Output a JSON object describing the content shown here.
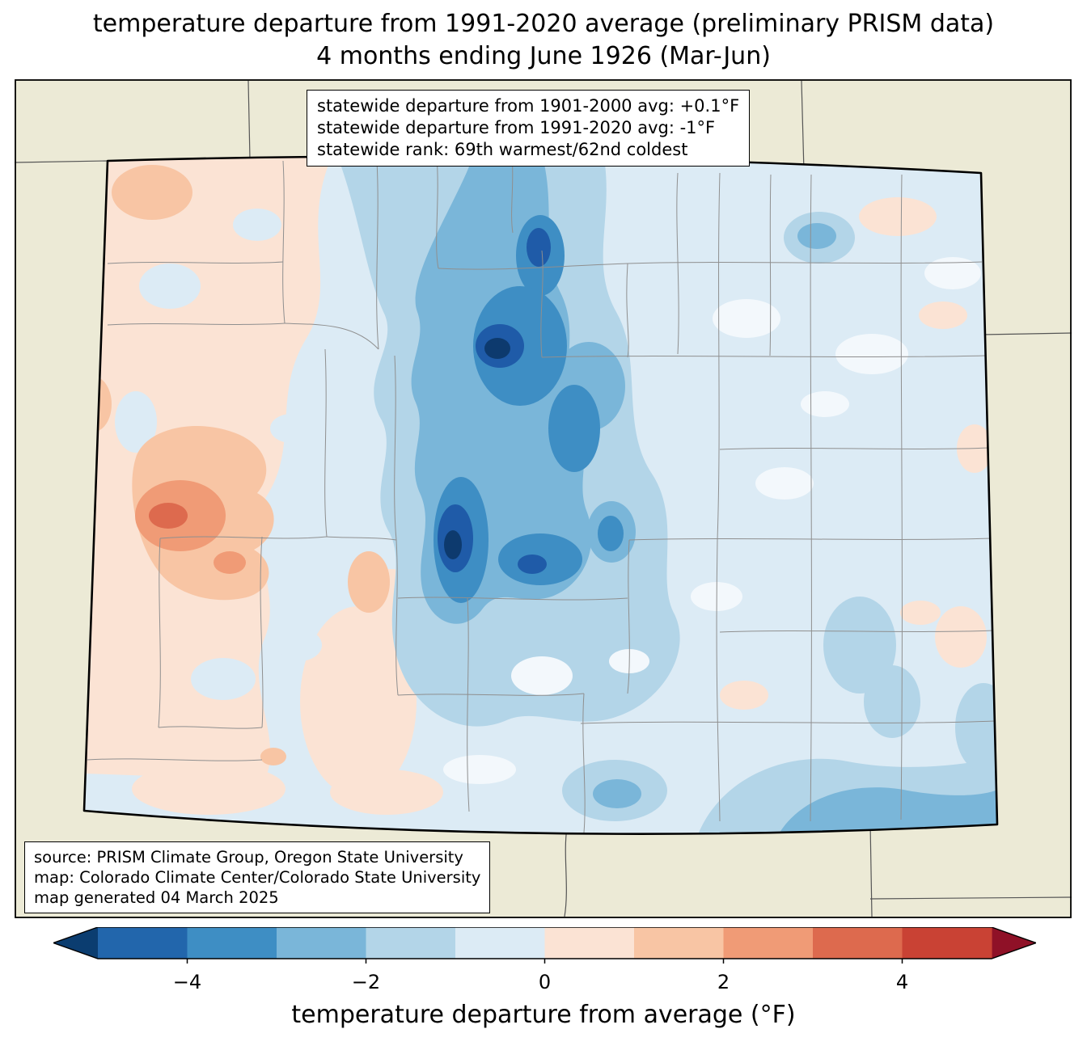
{
  "title": {
    "line1": "temperature departure from 1991-2020 average (preliminary PRISM data)",
    "line2": "4 months ending June 1926 (Mar-Jun)"
  },
  "stats_box": {
    "lines": [
      "statewide departure from 1901-2000 avg: +0.1°F",
      "statewide departure from 1991-2020 avg: -1°F",
      "statewide rank: 69th warmest/62nd coldest"
    ]
  },
  "source_box": {
    "lines": [
      "source: PRISM Climate Group, Oregon State University",
      "map: Colorado Climate Center/Colorado State University",
      "map generated 04 March 2025"
    ]
  },
  "colorbar": {
    "label": "temperature departure from average (°F)",
    "range": [
      -5,
      5
    ],
    "ticks": [
      {
        "value": -4,
        "label": "−4"
      },
      {
        "value": -2,
        "label": "−2"
      },
      {
        "value": 0,
        "label": "0"
      },
      {
        "value": 2,
        "label": "2"
      },
      {
        "value": 4,
        "label": "4"
      }
    ],
    "under_color": "#0b3d70",
    "over_color": "#8f1127",
    "segment_colors": [
      "#2266ac",
      "#3e8ec4",
      "#7ab6d9",
      "#b3d5e8",
      "#dcebf5",
      "#fbe3d4",
      "#f8c5a4",
      "#f09b76",
      "#dd6a4e",
      "#c94234"
    ]
  },
  "map": {
    "palette": {
      "outside": "#ecead6",
      "base": "#dcebf5",
      "pink": "#fbe3d4",
      "orange1": "#f8c5a4",
      "orange2": "#f09b76",
      "orange3": "#dd6a4e",
      "blue1": "#b3d5e8",
      "blue2": "#7ab6d9",
      "blue3": "#3e8ec4",
      "blue4": "#1f5ba8",
      "blue5": "#0d3a6e",
      "white0": "#f3f8fc",
      "county": "#8f8f8f",
      "neighbor": "#555555",
      "border": "#000000"
    }
  }
}
